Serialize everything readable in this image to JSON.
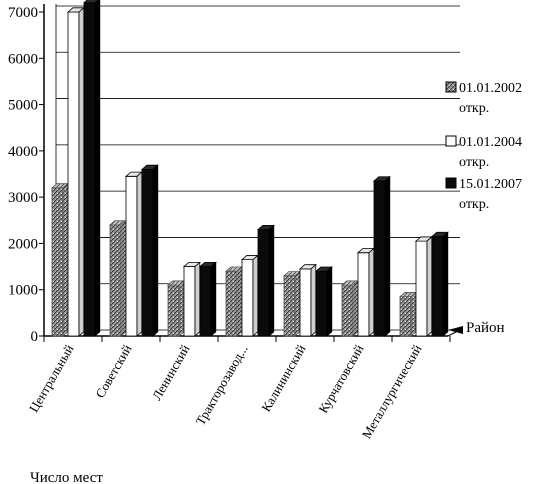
{
  "chart_data": {
    "type": "bar",
    "style": "3d-grouped",
    "xlabel": "Район",
    "ylabel": "Число мест",
    "ylim": [
      0,
      7000
    ],
    "yticks": [
      "0",
      "1000",
      "2000",
      "3000",
      "4000",
      "5000",
      "6000",
      "7000"
    ],
    "grid": "horizontal",
    "legend_position": "right",
    "categories": [
      "Центральный",
      "Советский",
      "Ленинский",
      "Тракторозавод...",
      "Калининский",
      "Курчатовский",
      "Металлургический"
    ],
    "series": [
      {
        "name": "01.01.2002",
        "name_line2": "откр.",
        "fill": "hatched-gray",
        "values": [
          3200,
          2400,
          1100,
          1400,
          1300,
          1100,
          850
        ]
      },
      {
        "name": "01.01.2004",
        "name_line2": "откр.",
        "fill": "white",
        "values": [
          7000,
          3450,
          1500,
          1650,
          1450,
          1800,
          2050
        ]
      },
      {
        "name": "15.01.2007",
        "name_line2": "откр.",
        "fill": "black",
        "values": [
          7200,
          3600,
          1500,
          2300,
          1400,
          3350,
          2150
        ]
      }
    ]
  }
}
